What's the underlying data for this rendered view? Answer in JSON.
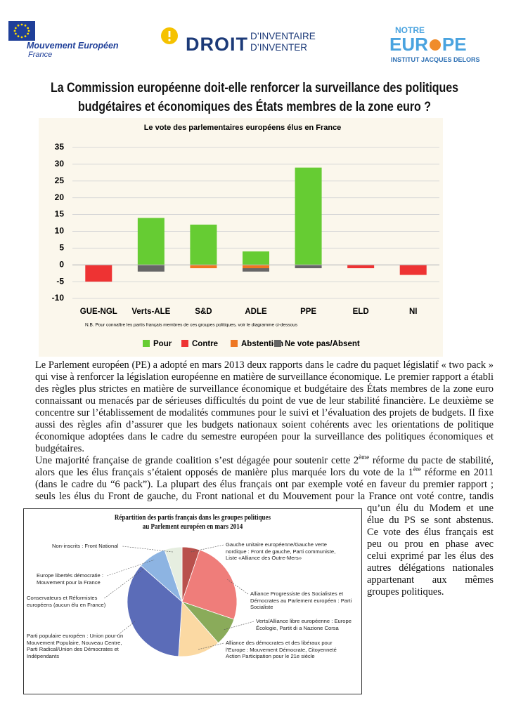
{
  "header": {
    "org1": {
      "name": "Mouvement Européen",
      "country": "France"
    },
    "org2": {
      "name": "DROIT",
      "tagline": [
        "D’INVENTAIRE",
        "D’INVENTER"
      ]
    },
    "org3": {
      "top": "NOTRE",
      "name": [
        "EUR",
        "PE"
      ],
      "sub": "INSTITUT JACQUES DELORS"
    }
  },
  "title": [
    "La Commission européenne doit-elle renforcer la surveillance des politiques",
    "budgétaires et économiques des États membres de la zone euro ?"
  ],
  "chart_data": [
    {
      "type": "bar",
      "stacked": true,
      "title": "Le vote des parlementaires européens élus en France",
      "categories": [
        "GUE-NGL",
        "Verts-ALE",
        "S&D",
        "ADLE",
        "PPE",
        "ELD",
        "NI"
      ],
      "series": [
        {
          "name": "Pour",
          "color": "#66cc33",
          "values": [
            0,
            14,
            12,
            4,
            29,
            0,
            0
          ]
        },
        {
          "name": "Contre",
          "color": "#ee3333",
          "values": [
            -5,
            0,
            0,
            0,
            0,
            -1,
            -3
          ]
        },
        {
          "name": "Abstention",
          "color": "#ee7722",
          "values": [
            0,
            0,
            -1,
            -1,
            0,
            0,
            0
          ]
        },
        {
          "name": "Ne vote pas/Absent",
          "color": "#666666",
          "values": [
            0,
            -2,
            0,
            -1,
            -1,
            0,
            0
          ]
        }
      ],
      "ylim": [
        -10,
        35
      ],
      "yticks": [
        -10,
        -5,
        0,
        5,
        10,
        15,
        20,
        25,
        30,
        35
      ],
      "grid": true,
      "note": "N.B. Pour connaître les partis français membres de ces groupes politiques, voir le diagramme ci-dessous",
      "legend": "bottom"
    },
    {
      "type": "pie",
      "title": [
        "Répartition des partis français dans les groupes politiques",
        "au Parlement européen en mars 2014"
      ],
      "labels": [
        "Gauche unitaire européenne/Gauche verte nordique : Front de gauche, Parti communiste, Liste «Alliance des Outre-Mers»",
        "Alliance Progressiste des Socialistes et Démocrates au Parlement européen : Parti Socialiste",
        "Verts/Alliance libre européenne : Europe Écologie, Partit di a Nazione Corsa",
        "Alliance des démocrates et des libéraux pour l’Europe : Mouvement Démocrate, Citoyenneté Action Participation pour le 21e siècle",
        "Parti populaire européen : Union pour un Mouvement Populaire, Nouveau Centre, Parti Radical/Union des Démocrates et Indépendants",
        "Conservateurs et Réformistes européens (aucun élu en France)",
        "Europe libertés démocratie : Mouvement pour la France",
        "Non-inscrits : Front National"
      ],
      "values": [
        5,
        24,
        8,
        12,
        34,
        0,
        8,
        5
      ],
      "colors": [
        "#b9504c",
        "#ef7d7a",
        "#8aab5a",
        "#fbd9a3",
        "#5b6cb8",
        "#4f81bd",
        "#8db4e2",
        "#e6eee0"
      ]
    }
  ],
  "body": {
    "paragraphs": [
      [
        "Le Parlement européen (PE) a adopté en mars 2013 deux rapports dans le cadre du paquet législatif « two pack » qui vise à renforcer la législation européenne en matière de surveillance économique. Le premier rapport a établi des règles plus strictes en matière de surveillance économique et budgétaire des États membres de la zone euro connaissant ou menacés par de sérieuses difficultés du point de vue de leur stabilité financière. Le deuxième se concentre sur l’établissement de modalités communes pour le suivi et l’évaluation des projets de budgets. Il fixe aussi des règles afin d’assurer que les budgets nationaux soient cohérents avec les orientations de politique économique adoptées dans le cadre du semestre européen pour la surveillance des politiques économiques et budgétaires."
      ],
      [
        "Une majorité française de grande coalition s’est dégagée pour soutenir cette 2",
        "ème",
        " réforme du pacte de stabilité, alors que les élus français s’étaient opposés de manière plus marquée lors du vote de la 1",
        "ère",
        " réforme en 2011 (dans le cadre du “6 pack”). La plupart des élus français ont par exemple voté en faveur du premier rapport ; seuls les élus du Front de gauche, du Front national et du Mouvement pour la France ont voté contre, tandis qu’un élu du Modem et une élue du PS se sont abstenus. Ce vote des élus français est peu ou prou en phase avec celui exprimé par les élus des autres délégations nationales appartenant aux mêmes groupes politiques."
      ]
    ]
  }
}
